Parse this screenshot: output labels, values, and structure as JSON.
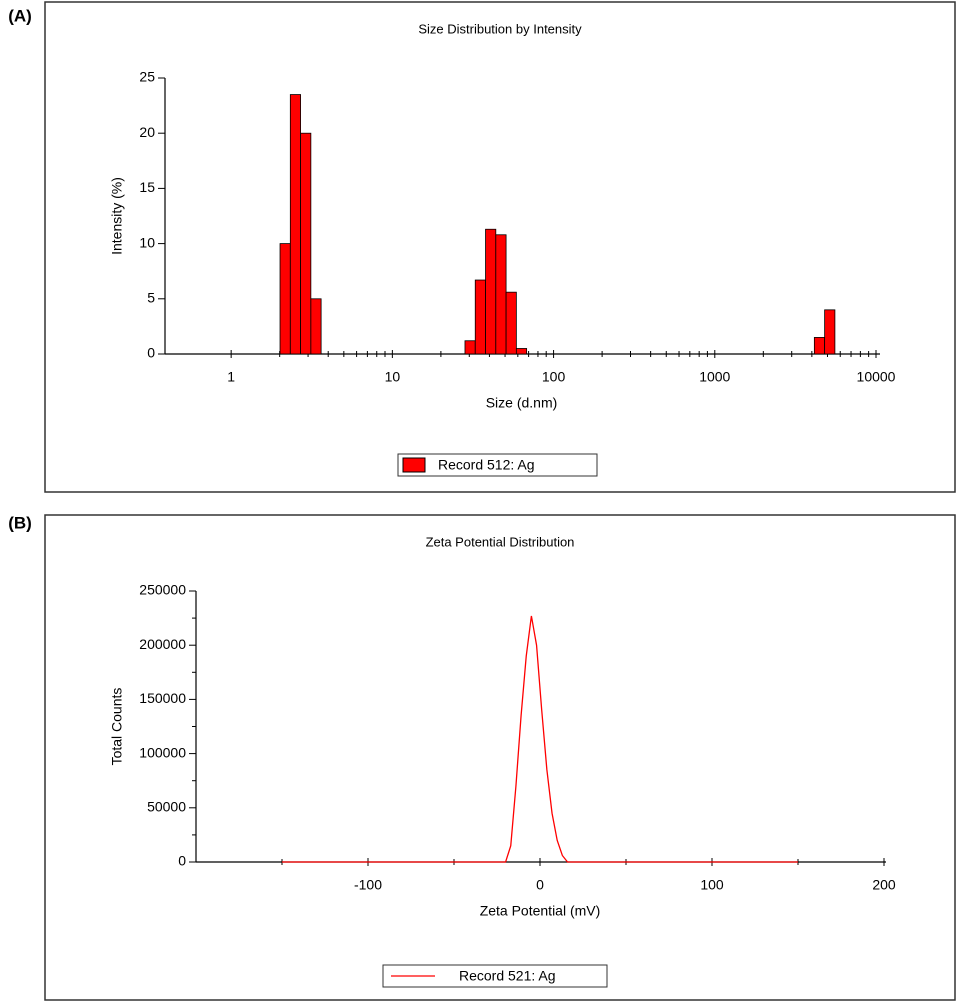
{
  "chart_data": [
    {
      "type": "histogram",
      "panel_label": "(A)",
      "title": "Size Distribution by Intensity",
      "x_label": "Size (d.nm)",
      "y_label": "Intensity (%)",
      "xscale": "log",
      "xlim": [
        0.4,
        10000
      ],
      "xticks": [
        1,
        10,
        100,
        1000,
        10000
      ],
      "x_minor_ticks": [
        2,
        3,
        4,
        5,
        6,
        7,
        8,
        9,
        20,
        30,
        40,
        50,
        60,
        70,
        80,
        90,
        200,
        300,
        400,
        500,
        600,
        700,
        800,
        900,
        2000,
        3000,
        4000,
        5000,
        6000,
        7000,
        8000,
        9000
      ],
      "ylim": [
        0,
        25
      ],
      "yticks": [
        0,
        5,
        10,
        15,
        20,
        25
      ],
      "bins": [
        2.01,
        2.328,
        2.696,
        3.122,
        3.615,
        4.187,
        4.849,
        5.615,
        6.503,
        7.531,
        8.721,
        10.1,
        11.7,
        13.54,
        15.69,
        18.17,
        21.04,
        24.36,
        28.21,
        32.67,
        37.84,
        43.82,
        50.75,
        58.77,
        68.06,
        78.82,
        91.28,
        105.7,
        122.4,
        141.8,
        164.2,
        190.1,
        220.2,
        255,
        295.3,
        342,
        396.1,
        458.7,
        531.2,
        615.1,
        712.4,
        825,
        955.4,
        1106,
        1281,
        1484,
        1718,
        1990,
        2305,
        2669,
        3091,
        3580,
        4145,
        4801,
        5560
      ],
      "series": [
        {
          "name": "Record 512: Ag",
          "color": "#ff0000",
          "values": [
            10,
            23.5,
            20,
            5,
            0,
            0,
            0,
            0,
            0,
            0,
            0,
            0,
            0,
            0,
            0,
            0,
            0,
            0,
            1.2,
            6.7,
            11.3,
            10.8,
            5.6,
            0.5,
            0,
            0,
            0,
            0,
            0,
            0,
            0,
            0,
            0,
            0,
            0,
            0,
            0,
            0,
            0,
            0,
            0,
            0,
            0,
            0,
            0,
            0,
            0,
            0,
            0,
            0,
            0,
            0,
            1.5,
            4
          ]
        }
      ]
    },
    {
      "type": "line",
      "panel_label": "(B)",
      "title": "Zeta Potential Distribution",
      "x_label": "Zeta Potential (mV)",
      "y_label": "Total Counts",
      "xlim": [
        -200,
        200
      ],
      "xticks": [
        -100,
        0,
        100,
        200
      ],
      "x_minor_ticks": [
        -150,
        -50,
        50,
        150
      ],
      "ylim": [
        0,
        250000
      ],
      "yticks": [
        0,
        50000,
        100000,
        150000,
        200000,
        250000
      ],
      "y_minor_ticks": [
        25000,
        75000,
        125000,
        175000,
        225000
      ],
      "x": [
        -150,
        -20,
        -17,
        -14,
        -11,
        -8,
        -5,
        -2,
        1,
        4,
        7,
        10,
        13,
        16,
        150
      ],
      "series": [
        {
          "name": "Record 521: Ag",
          "color": "#ff0000",
          "values": [
            0,
            0,
            15000,
            70000,
            135000,
            190000,
            227000,
            200000,
            140000,
            85000,
            45000,
            20000,
            6000,
            0,
            0
          ]
        }
      ]
    }
  ]
}
